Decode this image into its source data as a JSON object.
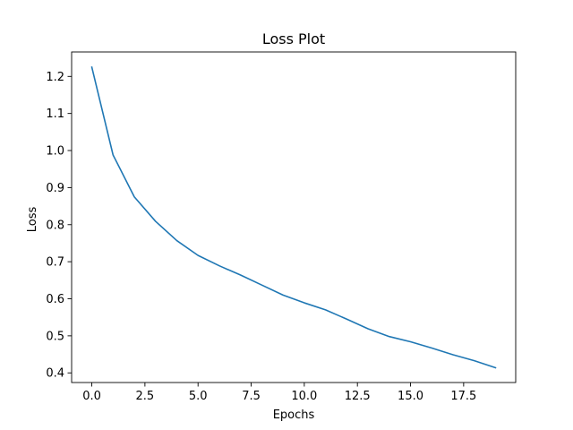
{
  "chart_data": {
    "type": "line",
    "title": "Loss Plot",
    "xlabel": "Epochs",
    "ylabel": "Loss",
    "xlim": [
      -0.95,
      19.95
    ],
    "ylim": [
      0.374,
      1.266
    ],
    "xticks": [
      0.0,
      2.5,
      5.0,
      7.5,
      10.0,
      12.5,
      15.0,
      17.5
    ],
    "xtick_labels": [
      "0.0",
      "2.5",
      "5.0",
      "7.5",
      "10.0",
      "12.5",
      "15.0",
      "17.5"
    ],
    "yticks": [
      0.4,
      0.5,
      0.6,
      0.7,
      0.8,
      0.9,
      1.0,
      1.1,
      1.2
    ],
    "ytick_labels": [
      "0.4",
      "0.5",
      "0.6",
      "0.7",
      "0.8",
      "0.9",
      "1.0",
      "1.1",
      "1.2"
    ],
    "grid": false,
    "legend": false,
    "series": [
      {
        "color": "#1f77b4",
        "x": [
          0,
          1,
          2,
          3,
          4,
          5,
          6,
          7,
          8,
          9,
          10,
          11,
          12,
          13,
          14,
          15,
          16,
          17,
          18,
          19
        ],
        "values": [
          1.225,
          0.988,
          0.875,
          0.809,
          0.757,
          0.717,
          0.689,
          0.664,
          0.637,
          0.61,
          0.589,
          0.57,
          0.545,
          0.519,
          0.498,
          0.484,
          0.467,
          0.449,
          0.433,
          0.414
        ]
      }
    ]
  }
}
